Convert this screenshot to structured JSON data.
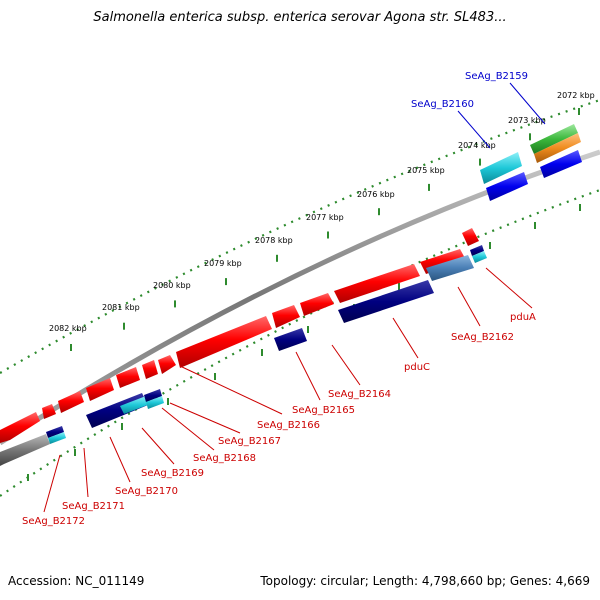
{
  "title": "Salmonella enterica subsp. enterica serovar Agona str. SL483...",
  "footer": {
    "accession": "Accession: NC_011149",
    "summary": "Topology: circular; Length: 4,798,660 bp; Genes: 4,669"
  },
  "colors": {
    "backbone": "#888888",
    "tick": "#2e8b2e",
    "cds_forward": "#ff0000",
    "cds_reverse": "#000080",
    "label_red": "#cc0000",
    "label_blue": "#0000cc",
    "cyan": "#1ec8d8",
    "steel_blue": "#4a7fb5",
    "green": "#3cb83c",
    "orange": "#f08c1e",
    "blue": "#0000ee",
    "gray": "#777777"
  },
  "tick_labels": [
    "2072 kbp",
    "2073 kbp",
    "2074 kbp",
    "2075 kbp",
    "2076 kbp",
    "2077 kbp",
    "2078 kbp",
    "2079 kbp",
    "2080 kbp",
    "2081 kbp",
    "2082 kbp"
  ],
  "gene_labels": {
    "SeAg_B2159": "SeAg_B2159",
    "SeAg_B2160": "SeAg_B2160",
    "pduA": "pduA",
    "SeAg_B2162": "SeAg_B2162",
    "pduC": "pduC",
    "SeAg_B2164": "SeAg_B2164",
    "SeAg_B2165": "SeAg_B2165",
    "SeAg_B2166": "SeAg_B2166",
    "SeAg_B2167": "SeAg_B2167",
    "SeAg_B2168": "SeAg_B2168",
    "SeAg_B2169": "SeAg_B2169",
    "SeAg_B2170": "SeAg_B2170",
    "SeAg_B2171": "SeAg_B2171",
    "SeAg_B2172": "SeAg_B2172"
  }
}
